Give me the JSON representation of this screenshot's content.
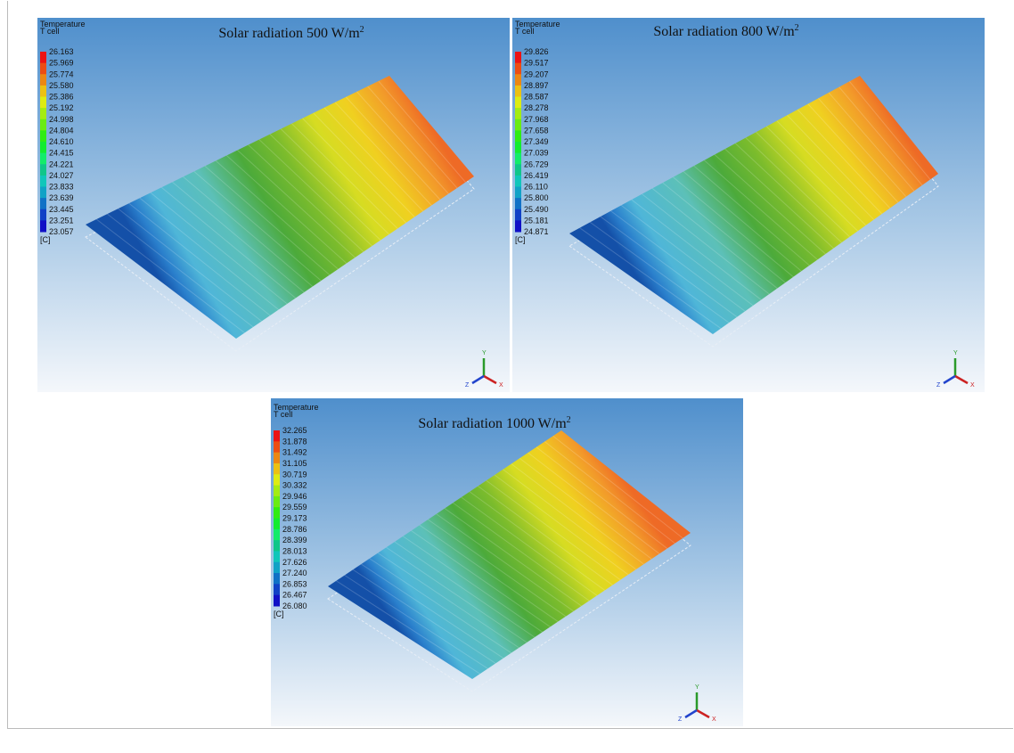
{
  "panels": [
    {
      "legend_title": "Temperature",
      "legend_subtitle": "T cell",
      "unit": "[C]",
      "title": "Solar radiation 500 W/m",
      "title_superscript": "2",
      "legend_values": [
        "26.163",
        "25.969",
        "25.774",
        "25.580",
        "25.386",
        "25.192",
        "24.998",
        "24.804",
        "24.610",
        "24.415",
        "24.221",
        "24.027",
        "23.833",
        "23.639",
        "23.445",
        "23.251",
        "23.057"
      ],
      "axes": [
        "Y",
        "X",
        "Z"
      ]
    },
    {
      "legend_title": "Temperature",
      "legend_subtitle": "T cell",
      "unit": "[C]",
      "title": "Solar radiation 800 W/m",
      "title_superscript": "2",
      "legend_values": [
        "29.826",
        "29.517",
        "29.207",
        "28.897",
        "28.587",
        "28.278",
        "27.968",
        "27.658",
        "27.349",
        "27.039",
        "26.729",
        "26.419",
        "26.110",
        "25.800",
        "25.490",
        "25.181",
        "24.871"
      ],
      "axes": [
        "Y",
        "X",
        "Z"
      ]
    },
    {
      "legend_title": "Temperature",
      "legend_subtitle": "T cell",
      "unit": "[C]",
      "title": "Solar radiation 1000 W/m",
      "title_superscript": "2",
      "legend_values": [
        "32.265",
        "31.878",
        "31.492",
        "31.105",
        "30.719",
        "30.332",
        "29.946",
        "29.559",
        "29.173",
        "28.786",
        "28.399",
        "28.013",
        "27.626",
        "27.240",
        "26.853",
        "26.467",
        "26.080"
      ],
      "axes": [
        "Y",
        "X",
        "Z"
      ]
    }
  ]
}
